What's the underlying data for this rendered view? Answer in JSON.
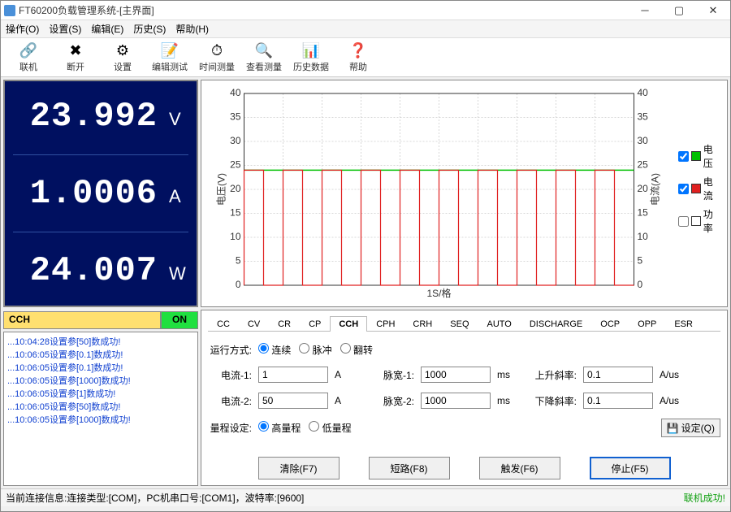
{
  "title": "FT60200负载管理系统-[主界面]",
  "menu": {
    "m0": "操作(O)",
    "m1": "设置(S)",
    "m2": "编辑(E)",
    "m3": "历史(S)",
    "m4": "帮助(H)"
  },
  "tools": [
    {
      "icon": "🔗",
      "label": "联机"
    },
    {
      "icon": "✖",
      "label": "断开"
    },
    {
      "icon": "⚙",
      "label": "设置"
    },
    {
      "icon": "📝",
      "label": "编辑测试"
    },
    {
      "icon": "⏱",
      "label": "时间测量"
    },
    {
      "icon": "🔍",
      "label": "查看测量"
    },
    {
      "icon": "📊",
      "label": "历史数据"
    },
    {
      "icon": "❓",
      "label": "帮助"
    }
  ],
  "readings": {
    "v": {
      "val": "23.992",
      "unit": "V"
    },
    "a": {
      "val": "1.0006",
      "unit": "A"
    },
    "w": {
      "val": "24.007",
      "unit": "W"
    }
  },
  "mode": {
    "label": "CCH",
    "state": "ON"
  },
  "logs": [
    "...10:04:28设置参[50]数成功!",
    "...10:06:05设置参[0.1]数成功!",
    "...10:06:05设置参[0.1]数成功!",
    "...10:06:05设置参[1000]数成功!",
    "...10:06:05设置参[1]数成功!",
    "...10:06:05设置参[50]数成功!",
    "...10:06:05设置参[1000]数成功!"
  ],
  "chart": {
    "xlabel": "1S/格",
    "ylabel_left": "电压(V)",
    "ylabel_right": "电流(A)",
    "y_left_ticks": [
      "0",
      "5",
      "10",
      "15",
      "20",
      "25",
      "30",
      "35",
      "40"
    ],
    "y_right_ticks": [
      "0",
      "5",
      "10",
      "15",
      "20",
      "25",
      "30",
      "35",
      "40"
    ],
    "green_level": 24,
    "green_max": 40,
    "pulse_high": 24,
    "pulse_low": 0,
    "pulse_periods": 10,
    "colors": {
      "green": "#00c000",
      "red": "#e02020",
      "purple": "#9020d0",
      "grid": "#d8d8d8",
      "axis": "#333"
    }
  },
  "legend": [
    {
      "label": "电压",
      "color": "#00c000",
      "checked": true
    },
    {
      "label": "电流",
      "color": "#e02020",
      "checked": true
    },
    {
      "label": "功率",
      "color": "#9020d0",
      "checked": false
    }
  ],
  "tabsList": [
    "CC",
    "CV",
    "CR",
    "CP",
    "CCH",
    "CPH",
    "CRH",
    "SEQ",
    "AUTO",
    "DISCHARGE",
    "OCP",
    "OPP",
    "ESR"
  ],
  "activeTab": "CCH",
  "runMode": {
    "label": "运行方式:",
    "opts": [
      "连续",
      "脉冲",
      "翻转"
    ],
    "sel": 0
  },
  "params": {
    "i1": {
      "label": "电流-1:",
      "val": "1",
      "unit": "A"
    },
    "pw1": {
      "label": "脉宽-1:",
      "val": "1000",
      "unit": "ms"
    },
    "up": {
      "label": "上升斜率:",
      "val": "0.1",
      "unit": "A/us"
    },
    "i2": {
      "label": "电流-2:",
      "val": "50",
      "unit": "A"
    },
    "pw2": {
      "label": "脉宽-2:",
      "val": "1000",
      "unit": "ms"
    },
    "dn": {
      "label": "下降斜率:",
      "val": "0.1",
      "unit": "A/us"
    }
  },
  "range": {
    "label": "量程设定:",
    "opts": [
      "高量程",
      "低量程"
    ],
    "sel": 0
  },
  "setLabel": "设定(Q)",
  "buttons": {
    "b0": "清除(F7)",
    "b1": "短路(F8)",
    "b2": "触发(F6)",
    "b3": "停止(F5)"
  },
  "status": {
    "conn": "当前连接信息:连接类型:[COM]，PC机串口号:[COM1]，波特率:[9600]",
    "ok": "联机成功!"
  }
}
